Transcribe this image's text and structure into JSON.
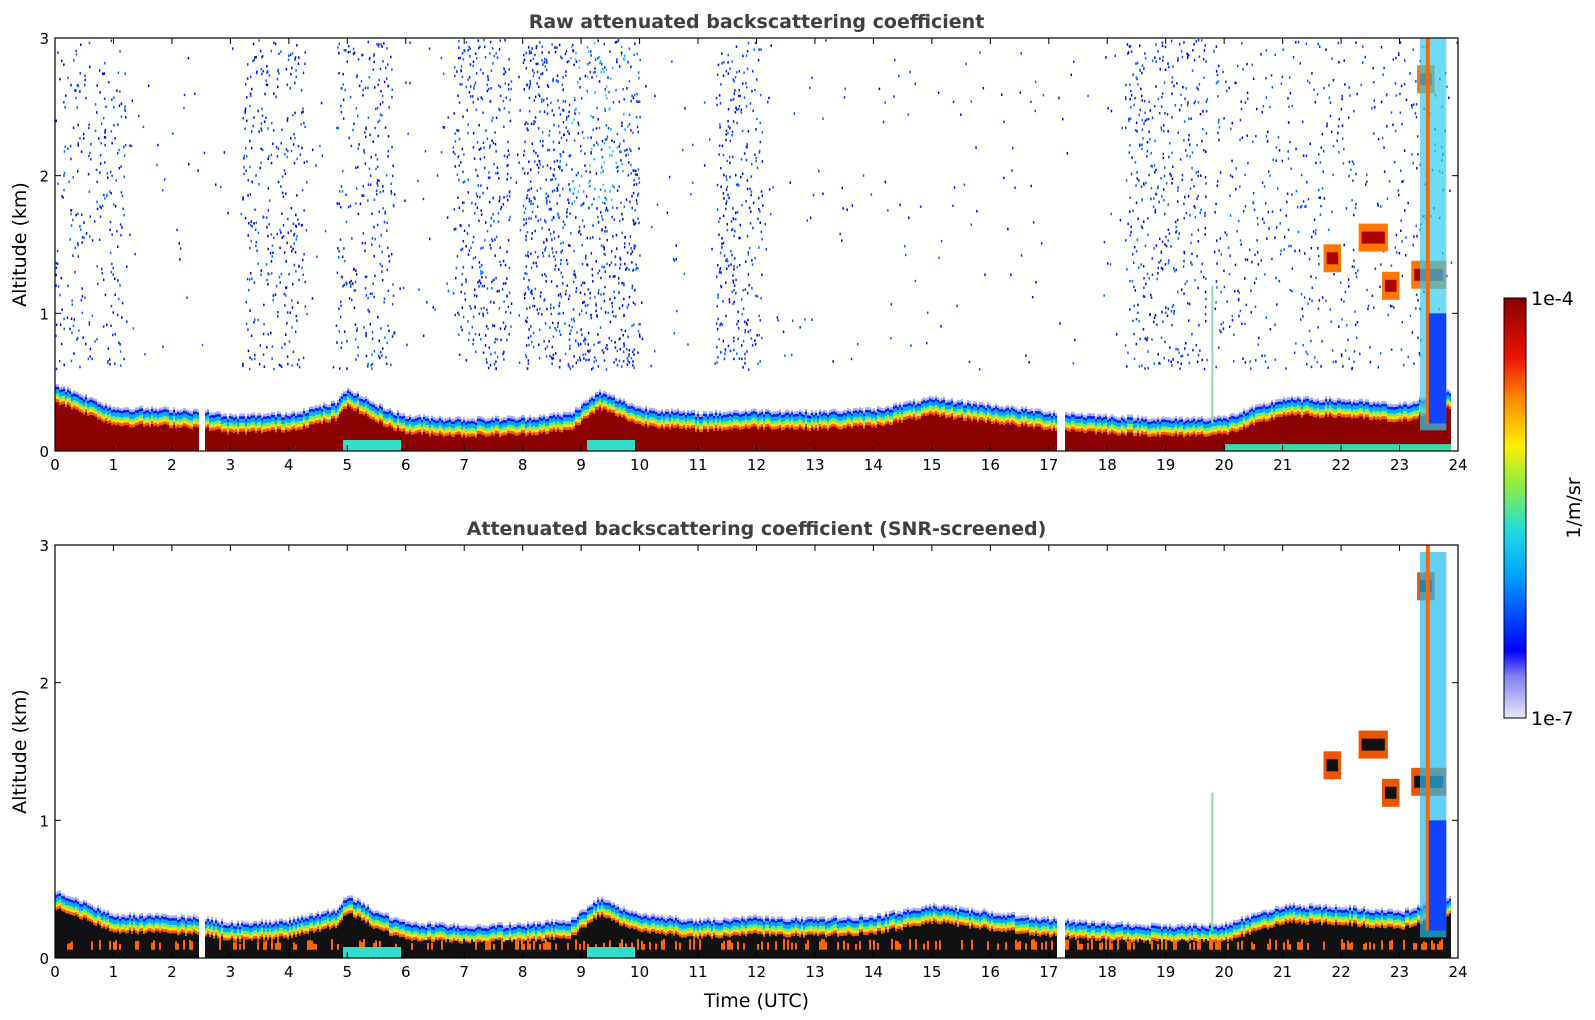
{
  "chart_data": [
    {
      "type": "heatmap",
      "title": "Raw attenuated backscattering coefficient",
      "xlabel": "",
      "ylabel": "Altitude (km)",
      "xlim": [
        0,
        24
      ],
      "ylim": [
        0,
        3
      ],
      "x_ticks": [
        "0",
        "1",
        "2",
        "3",
        "4",
        "5",
        "6",
        "7",
        "8",
        "9",
        "10",
        "11",
        "12",
        "13",
        "14",
        "15",
        "16",
        "17",
        "18",
        "19",
        "20",
        "21",
        "22",
        "23",
        "24"
      ],
      "y_ticks": [
        "0",
        "1",
        "2",
        "3"
      ],
      "boundary_layer_top_km": [
        {
          "t": 0,
          "z": 0.45
        },
        {
          "t": 1,
          "z": 0.28
        },
        {
          "t": 2,
          "z": 0.27
        },
        {
          "t": 2.5,
          "z": 0.26
        },
        {
          "t": 3,
          "z": 0.22
        },
        {
          "t": 4,
          "z": 0.24
        },
        {
          "t": 4.8,
          "z": 0.32
        },
        {
          "t": 5,
          "z": 0.42
        },
        {
          "t": 5.5,
          "z": 0.3
        },
        {
          "t": 6,
          "z": 0.22
        },
        {
          "t": 7,
          "z": 0.2
        },
        {
          "t": 8,
          "z": 0.21
        },
        {
          "t": 8.8,
          "z": 0.24
        },
        {
          "t": 9.3,
          "z": 0.4
        },
        {
          "t": 10,
          "z": 0.28
        },
        {
          "t": 11,
          "z": 0.24
        },
        {
          "t": 12,
          "z": 0.26
        },
        {
          "t": 13,
          "z": 0.25
        },
        {
          "t": 14,
          "z": 0.27
        },
        {
          "t": 15,
          "z": 0.35
        },
        {
          "t": 16,
          "z": 0.3
        },
        {
          "t": 17,
          "z": 0.25
        },
        {
          "t": 18,
          "z": 0.22
        },
        {
          "t": 19,
          "z": 0.2
        },
        {
          "t": 20,
          "z": 0.21
        },
        {
          "t": 21,
          "z": 0.35
        },
        {
          "t": 22,
          "z": 0.34
        },
        {
          "t": 23,
          "z": 0.3
        },
        {
          "t": 23.8,
          "z": 0.4
        }
      ],
      "cloud_layers": [
        {
          "t_start": 21.7,
          "t_end": 22.0,
          "z": 1.4
        },
        {
          "t_start": 22.3,
          "t_end": 22.8,
          "z": 1.55
        },
        {
          "t_start": 22.7,
          "t_end": 23.0,
          "z": 1.2
        },
        {
          "t_start": 23.2,
          "t_end": 23.8,
          "z": 1.28
        },
        {
          "t_start": 23.3,
          "t_end": 23.6,
          "z": 2.7
        }
      ],
      "data_gaps_utc": [
        2.5,
        17.2
      ]
    },
    {
      "type": "heatmap",
      "title": "Attenuated backscattering coefficient (SNR-screened)",
      "xlabel": "Time (UTC)",
      "ylabel": "Altitude (km)",
      "xlim": [
        0,
        24
      ],
      "ylim": [
        0,
        3
      ],
      "x_ticks": [
        "0",
        "1",
        "2",
        "3",
        "4",
        "5",
        "6",
        "7",
        "8",
        "9",
        "10",
        "11",
        "12",
        "13",
        "14",
        "15",
        "16",
        "17",
        "18",
        "19",
        "20",
        "21",
        "22",
        "23",
        "24"
      ],
      "y_ticks": [
        "0",
        "1",
        "2",
        "3"
      ]
    }
  ],
  "colorbar": {
    "label": "1/m/sr",
    "max_label": "1e-4",
    "min_label": "1e-7",
    "colors": [
      "#e8e8f8",
      "#0000ff",
      "#00aaff",
      "#22dddd",
      "#88ee44",
      "#ffee00",
      "#ff8800",
      "#ee1100",
      "#880000"
    ]
  }
}
